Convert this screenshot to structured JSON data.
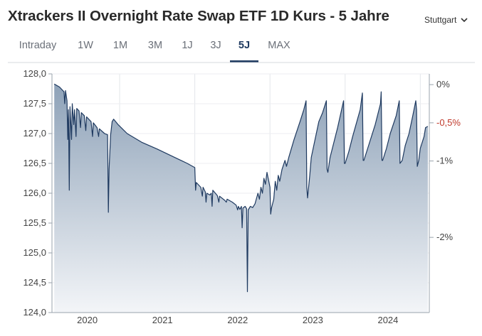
{
  "header": {
    "title": "Xtrackers II Overnight Rate Swap ETF 1D Kurs - 5 Jahre",
    "exchange": "Stuttgart"
  },
  "tabs": [
    {
      "label": "Intraday",
      "active": false
    },
    {
      "label": "1W",
      "active": false
    },
    {
      "label": "1M",
      "active": false
    },
    {
      "label": "3M",
      "active": false
    },
    {
      "label": "1J",
      "active": false
    },
    {
      "label": "3J",
      "active": false
    },
    {
      "label": "5J",
      "active": true
    },
    {
      "label": "MAX",
      "active": false
    }
  ],
  "colors": {
    "line": "#1f3a60",
    "accent": "#1f3a60",
    "negative_label": "#c0392b"
  },
  "chart_data": {
    "type": "area",
    "title": "Xtrackers II Overnight Rate Swap ETF 1D Kurs - 5 Jahre",
    "y_left": {
      "min": 124.0,
      "max": 128.0,
      "ticks": [
        "128,0",
        "127,5",
        "127,0",
        "126,5",
        "126,0",
        "125,5",
        "125,0",
        "124,5",
        "124,0"
      ]
    },
    "y_right": {
      "ticks": [
        {
          "label": "0%",
          "value": 127.82,
          "highlight": false
        },
        {
          "label": "-0,5%",
          "value": 127.18,
          "highlight": true
        },
        {
          "label": "-1%",
          "value": 126.54,
          "highlight": false
        },
        {
          "label": "-2%",
          "value": 125.26,
          "highlight": false
        }
      ]
    },
    "x_domain": [
      2019.6,
      2024.62
    ],
    "x_ticks": [
      {
        "label": "2020",
        "value": 2020.0
      },
      {
        "label": "2021",
        "value": 2021.0
      },
      {
        "label": "2022",
        "value": 2022.0
      },
      {
        "label": "2023",
        "value": 2023.0
      },
      {
        "label": "2024",
        "value": 2024.0
      }
    ],
    "series": [
      {
        "name": "Kurs",
        "points": [
          [
            2019.63,
            127.83
          ],
          [
            2019.7,
            127.78
          ],
          [
            2019.76,
            127.7
          ],
          [
            2019.77,
            127.5
          ],
          [
            2019.78,
            127.72
          ],
          [
            2019.8,
            127.55
          ],
          [
            2019.81,
            126.9
          ],
          [
            2019.82,
            127.4
          ],
          [
            2019.83,
            126.05
          ],
          [
            2019.84,
            127.45
          ],
          [
            2019.86,
            126.9
          ],
          [
            2019.87,
            127.5
          ],
          [
            2019.89,
            127.15
          ],
          [
            2019.9,
            127.4
          ],
          [
            2019.92,
            126.95
          ],
          [
            2019.93,
            127.42
          ],
          [
            2019.96,
            127.38
          ],
          [
            2019.98,
            127.1
          ],
          [
            2019.99,
            127.35
          ],
          [
            2020.03,
            127.3
          ],
          [
            2020.05,
            127.05
          ],
          [
            2020.06,
            127.28
          ],
          [
            2020.12,
            127.2
          ],
          [
            2020.14,
            126.95
          ],
          [
            2020.15,
            127.18
          ],
          [
            2020.2,
            127.1
          ],
          [
            2020.22,
            126.95
          ],
          [
            2020.23,
            127.08
          ],
          [
            2020.3,
            127.0
          ],
          [
            2020.34,
            126.98
          ],
          [
            2020.35,
            125.68
          ],
          [
            2020.36,
            126.4
          ],
          [
            2020.38,
            126.98
          ],
          [
            2020.4,
            127.2
          ],
          [
            2020.42,
            127.24
          ],
          [
            2020.48,
            127.15
          ],
          [
            2020.6,
            127.0
          ],
          [
            2020.8,
            126.85
          ],
          [
            2021.0,
            126.74
          ],
          [
            2021.2,
            126.62
          ],
          [
            2021.4,
            126.5
          ],
          [
            2021.5,
            126.43
          ],
          [
            2021.51,
            126.05
          ],
          [
            2021.52,
            126.18
          ],
          [
            2021.58,
            126.1
          ],
          [
            2021.6,
            125.95
          ],
          [
            2021.61,
            126.1
          ],
          [
            2021.64,
            126.02
          ],
          [
            2021.65,
            125.85
          ],
          [
            2021.66,
            126.0
          ],
          [
            2021.7,
            125.97
          ],
          [
            2021.72,
            126.0
          ],
          [
            2021.73,
            125.78
          ],
          [
            2021.74,
            126.05
          ],
          [
            2021.8,
            125.96
          ],
          [
            2021.82,
            125.85
          ],
          [
            2021.83,
            125.95
          ],
          [
            2021.9,
            125.88
          ],
          [
            2021.92,
            125.85
          ],
          [
            2021.93,
            125.9
          ],
          [
            2022.0,
            125.85
          ],
          [
            2022.05,
            125.8
          ],
          [
            2022.07,
            125.72
          ],
          [
            2022.08,
            125.78
          ],
          [
            2022.1,
            125.73
          ],
          [
            2022.12,
            125.78
          ],
          [
            2022.13,
            125.42
          ],
          [
            2022.14,
            125.75
          ],
          [
            2022.17,
            125.78
          ],
          [
            2022.19,
            125.74
          ],
          [
            2022.2,
            124.35
          ],
          [
            2022.21,
            125.72
          ],
          [
            2022.24,
            125.78
          ],
          [
            2022.27,
            125.76
          ],
          [
            2022.3,
            125.82
          ],
          [
            2022.34,
            126.0
          ],
          [
            2022.36,
            125.9
          ],
          [
            2022.38,
            126.1
          ],
          [
            2022.4,
            126.0
          ],
          [
            2022.42,
            126.25
          ],
          [
            2022.44,
            126.15
          ],
          [
            2022.46,
            126.35
          ],
          [
            2022.5,
            126.1
          ],
          [
            2022.51,
            125.65
          ],
          [
            2022.52,
            125.75
          ],
          [
            2022.55,
            125.9
          ],
          [
            2022.57,
            126.2
          ],
          [
            2022.59,
            126.05
          ],
          [
            2022.61,
            126.3
          ],
          [
            2022.63,
            126.2
          ],
          [
            2022.66,
            126.4
          ],
          [
            2022.7,
            126.55
          ],
          [
            2022.72,
            126.45
          ],
          [
            2022.75,
            126.6
          ],
          [
            2022.82,
            126.9
          ],
          [
            2022.9,
            127.2
          ],
          [
            2022.95,
            127.4
          ],
          [
            2022.98,
            127.55
          ],
          [
            2022.99,
            126.1
          ],
          [
            2023.0,
            125.92
          ],
          [
            2023.03,
            126.3
          ],
          [
            2023.05,
            126.6
          ],
          [
            2023.1,
            126.9
          ],
          [
            2023.15,
            127.2
          ],
          [
            2023.2,
            127.35
          ],
          [
            2023.25,
            127.55
          ],
          [
            2023.26,
            126.4
          ],
          [
            2023.27,
            126.35
          ],
          [
            2023.3,
            126.6
          ],
          [
            2023.4,
            127.1
          ],
          [
            2023.48,
            127.55
          ],
          [
            2023.49,
            126.5
          ],
          [
            2023.5,
            126.5
          ],
          [
            2023.55,
            126.7
          ],
          [
            2023.6,
            126.95
          ],
          [
            2023.7,
            127.4
          ],
          [
            2023.73,
            127.68
          ],
          [
            2023.74,
            126.55
          ],
          [
            2023.75,
            126.55
          ],
          [
            2023.8,
            126.75
          ],
          [
            2023.9,
            127.15
          ],
          [
            2023.97,
            127.5
          ],
          [
            2023.98,
            127.7
          ],
          [
            2023.99,
            126.55
          ],
          [
            2024.0,
            126.55
          ],
          [
            2024.05,
            126.75
          ],
          [
            2024.1,
            127.0
          ],
          [
            2024.18,
            127.3
          ],
          [
            2024.22,
            127.55
          ],
          [
            2024.23,
            126.5
          ],
          [
            2024.26,
            126.55
          ],
          [
            2024.3,
            126.8
          ],
          [
            2024.35,
            127.0
          ],
          [
            2024.4,
            127.3
          ],
          [
            2024.44,
            127.55
          ],
          [
            2024.45,
            127.4
          ],
          [
            2024.46,
            126.45
          ],
          [
            2024.48,
            126.55
          ],
          [
            2024.5,
            126.75
          ],
          [
            2024.55,
            126.95
          ],
          [
            2024.57,
            127.1
          ],
          [
            2024.6,
            127.12
          ]
        ]
      }
    ]
  }
}
